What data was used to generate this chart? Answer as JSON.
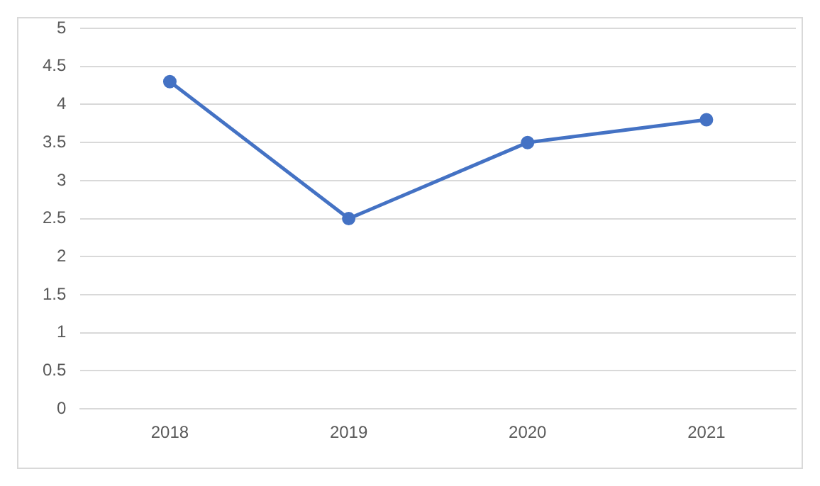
{
  "chart_data": {
    "type": "line",
    "categories": [
      "2018",
      "2019",
      "2020",
      "2021"
    ],
    "series": [
      {
        "color": "#4472c4",
        "values": [
          4.3,
          2.5,
          3.5,
          3.8
        ]
      }
    ],
    "ylim": [
      0,
      5
    ],
    "yticks": [
      0,
      0.5,
      1,
      1.5,
      2,
      2.5,
      3,
      3.5,
      4,
      4.5,
      5
    ],
    "grid": "y",
    "legend": false,
    "marker": "circle",
    "line_style": "solid"
  }
}
